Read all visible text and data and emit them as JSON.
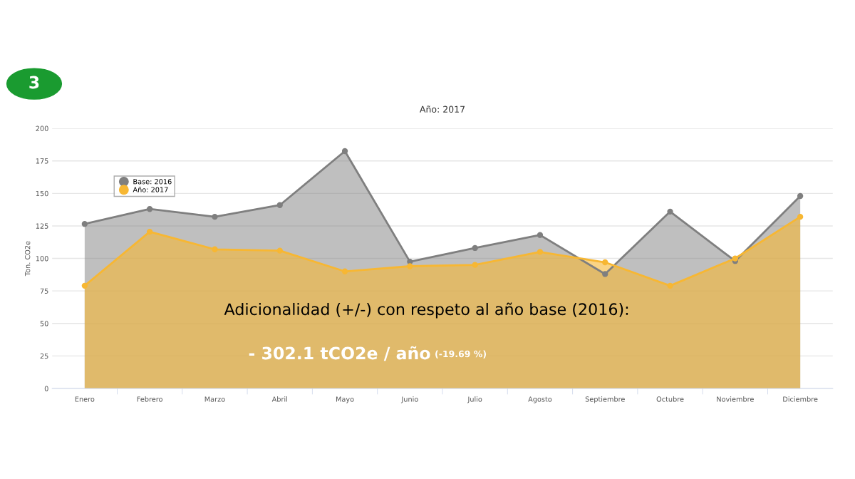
{
  "chart_data": {
    "type": "area",
    "title": "Año: 2017",
    "ylabel": "Ton. CO2e",
    "categories": [
      "Enero",
      "Febrero",
      "Marzo",
      "Abril",
      "Mayo",
      "Junio",
      "Julio",
      "Agosto",
      "Septiembre",
      "Octubre",
      "Noviembre",
      "Diciembre"
    ],
    "series": [
      {
        "name": "Base: 2016",
        "color": "#7f7f7f",
        "values": [
          126.5,
          138,
          132,
          141,
          182.5,
          97.5,
          108,
          118,
          88,
          136,
          98,
          148
        ]
      },
      {
        "name": "Año: 2017",
        "color": "#f7b733",
        "values": [
          79,
          120.5,
          107,
          106,
          90,
          94,
          95,
          105,
          97,
          79,
          100,
          132
        ]
      }
    ],
    "ylim": [
      0,
      200
    ],
    "yticks": [
      0,
      25,
      50,
      75,
      100,
      125,
      150,
      175,
      200
    ],
    "grid": "y",
    "legend": "top left",
    "marker": "circle",
    "annotations": [
      "3",
      "Adicionalidad (+/-) con respeto al año base (2016):",
      "- 302.1 tCO2e / año",
      "(-19.69 %)"
    ]
  }
}
